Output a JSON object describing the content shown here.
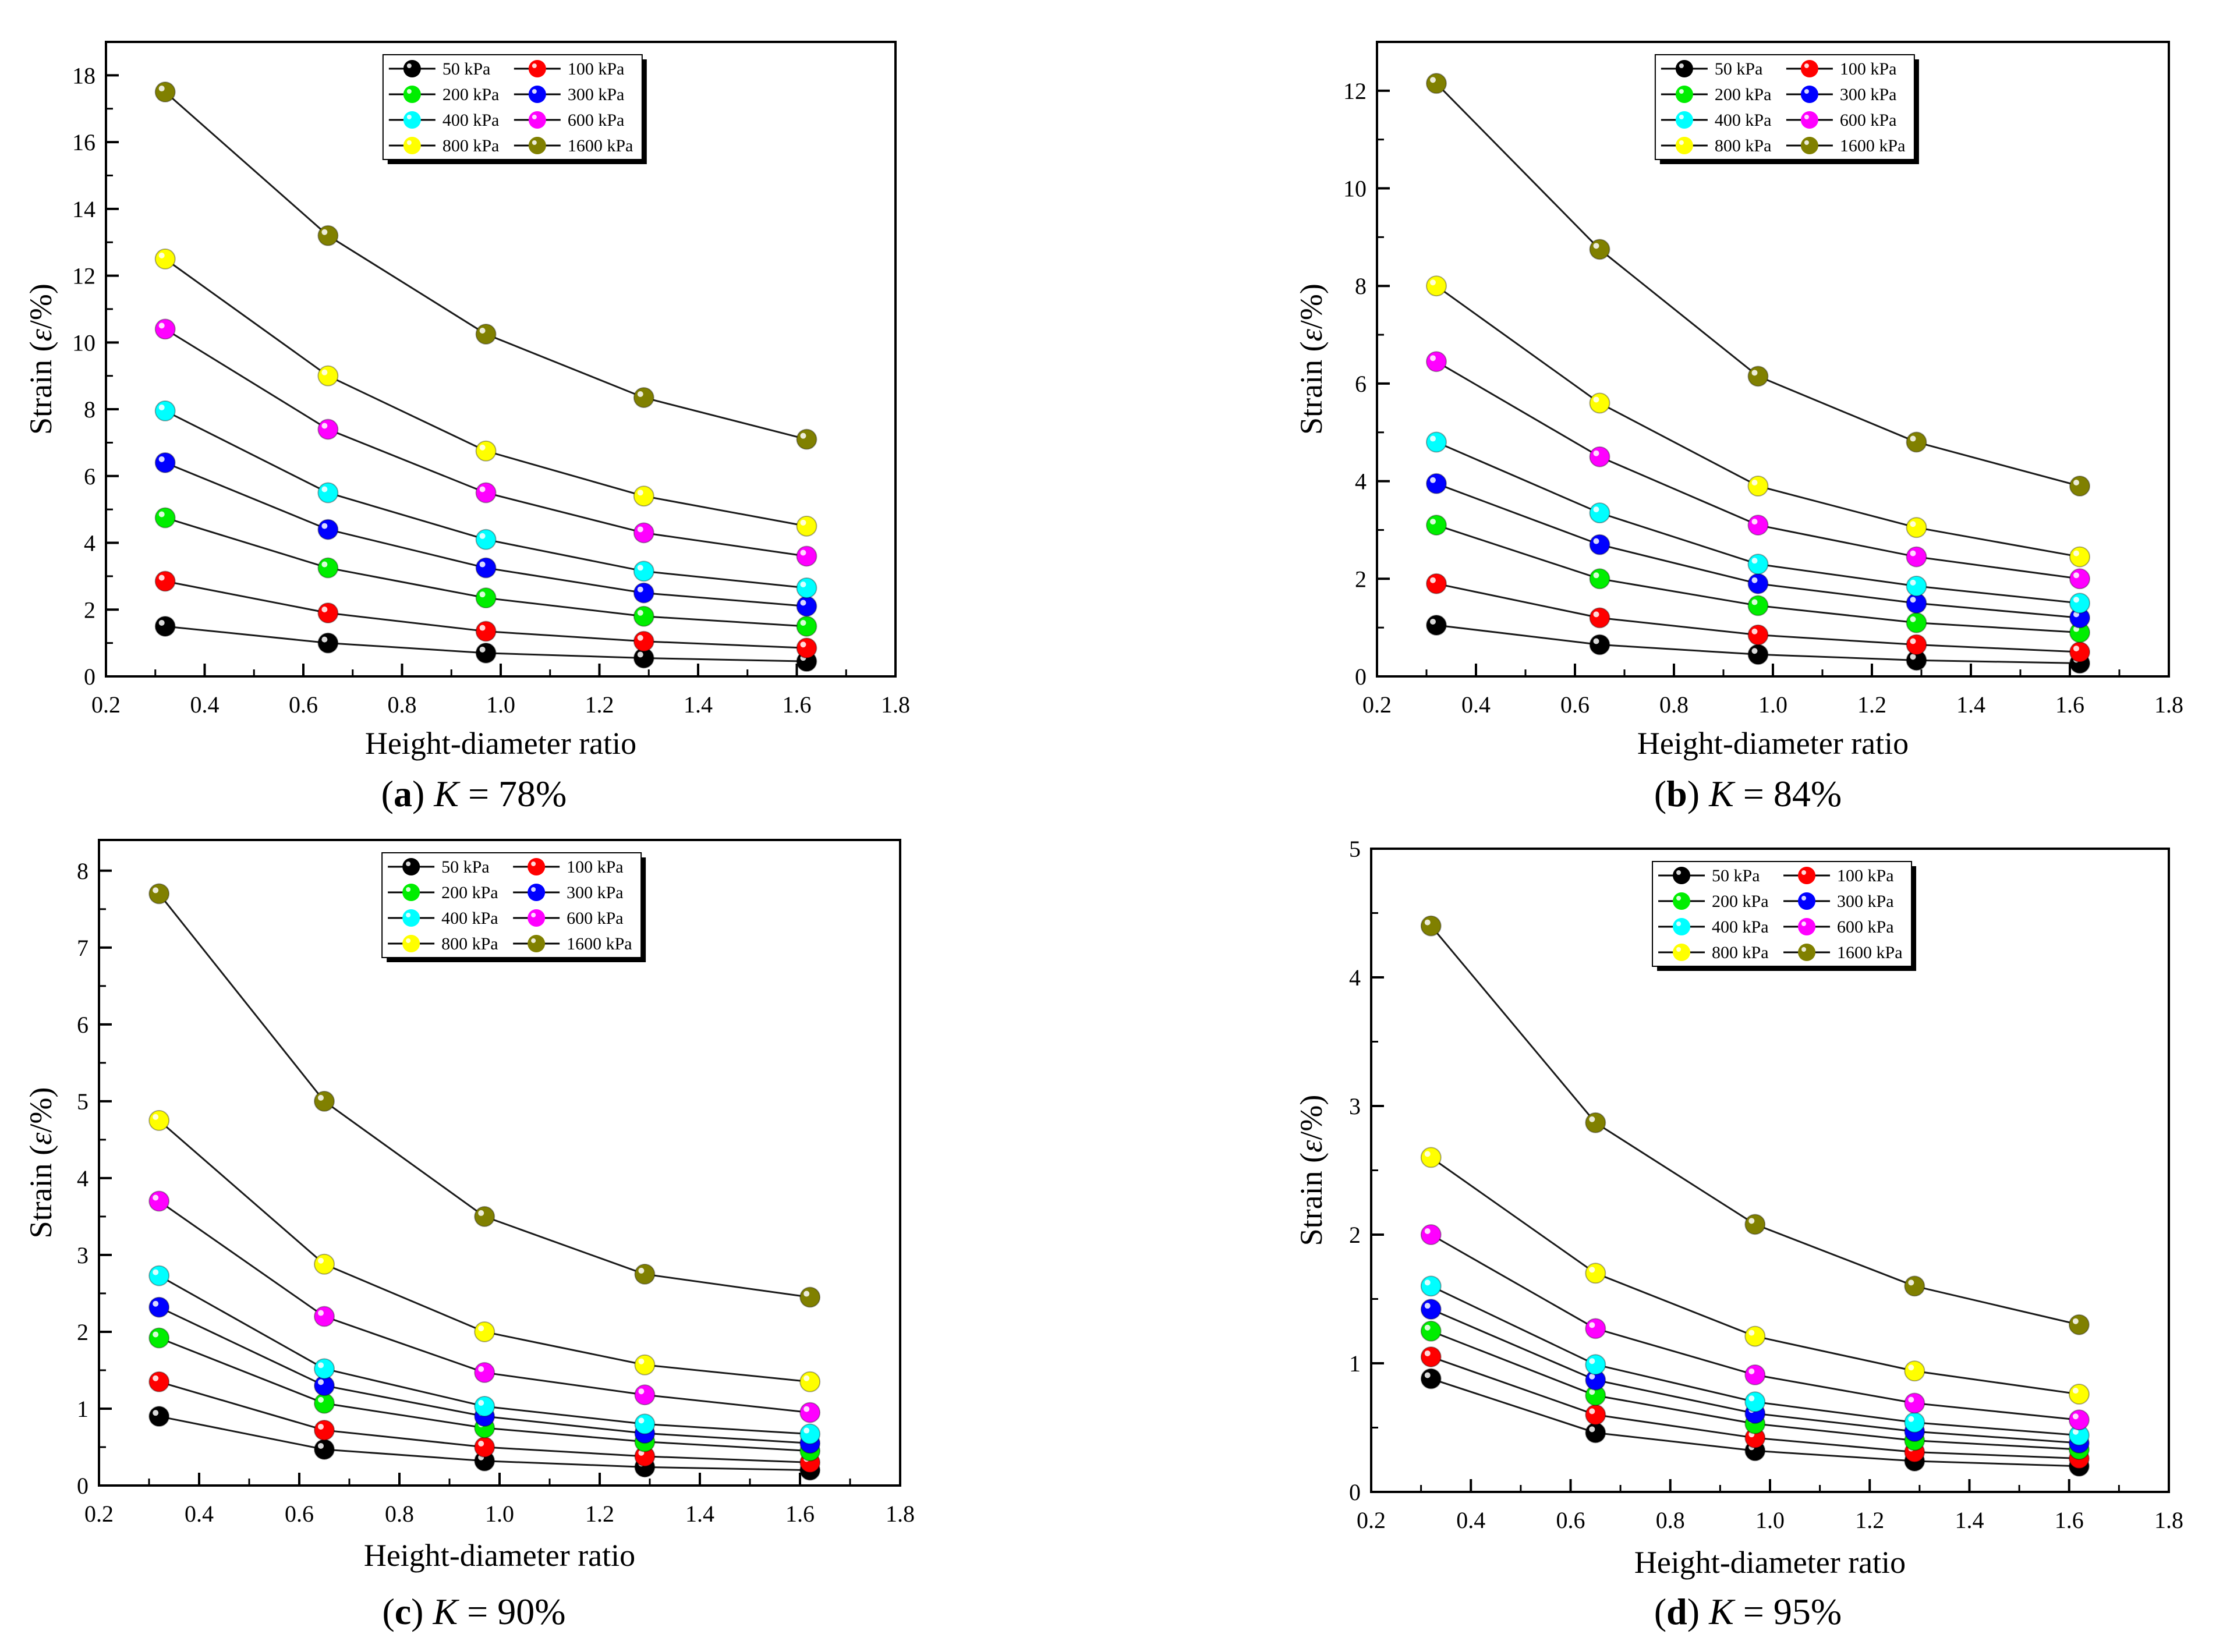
{
  "chart_data": [
    {
      "type": "line",
      "caption_letter": "a",
      "caption_var": "K",
      "caption_value": " = 78%",
      "xlabel": "Height-diameter ratio",
      "ylabel_prefix": "Strain (",
      "ylabel_symbol": "ε",
      "ylabel_suffix": "/%)",
      "xlim": [
        0.2,
        1.8
      ],
      "ylim": [
        0,
        19
      ],
      "xticks": [
        0.2,
        0.4,
        0.6,
        0.8,
        1.0,
        1.2,
        1.4,
        1.6,
        1.8
      ],
      "yticks": [
        0,
        2,
        4,
        6,
        8,
        10,
        12,
        14,
        16,
        18
      ],
      "x": [
        0.32,
        0.65,
        0.97,
        1.29,
        1.62
      ],
      "legend_position": "top-center",
      "series": [
        {
          "name": "50 kPa",
          "color": "#000000",
          "values": [
            1.5,
            1.0,
            0.7,
            0.55,
            0.45
          ]
        },
        {
          "name": "100 kPa",
          "color": "#ff0000",
          "values": [
            2.85,
            1.9,
            1.35,
            1.05,
            0.85
          ]
        },
        {
          "name": "200 kPa",
          "color": "#00ee00",
          "values": [
            4.75,
            3.25,
            2.35,
            1.8,
            1.5
          ]
        },
        {
          "name": "300 kPa",
          "color": "#0000ff",
          "values": [
            6.4,
            4.4,
            3.25,
            2.5,
            2.1
          ]
        },
        {
          "name": "400 kPa",
          "color": "#00ffff",
          "values": [
            7.95,
            5.5,
            4.1,
            3.15,
            2.65
          ]
        },
        {
          "name": "600 kPa",
          "color": "#ff00ff",
          "values": [
            10.4,
            7.4,
            5.5,
            4.3,
            3.6
          ]
        },
        {
          "name": "800 kPa",
          "color": "#ffff00",
          "values": [
            12.5,
            9.0,
            6.75,
            5.4,
            4.5
          ]
        },
        {
          "name": "1600 kPa",
          "color": "#808000",
          "values": [
            17.5,
            13.2,
            10.25,
            8.35,
            7.1
          ]
        }
      ]
    },
    {
      "type": "line",
      "caption_letter": "b",
      "caption_var": "K",
      "caption_value": " = 84%",
      "xlabel": "Height-diameter ratio",
      "ylabel_prefix": "Strain (",
      "ylabel_symbol": "ε",
      "ylabel_suffix": "/%)",
      "xlim": [
        0.2,
        1.8
      ],
      "ylim": [
        0,
        13
      ],
      "xticks": [
        0.2,
        0.4,
        0.6,
        0.8,
        1.0,
        1.2,
        1.4,
        1.6,
        1.8
      ],
      "yticks": [
        0,
        2,
        4,
        6,
        8,
        10,
        12
      ],
      "x": [
        0.32,
        0.65,
        0.97,
        1.29,
        1.62
      ],
      "legend_position": "top-center",
      "series": [
        {
          "name": "50 kPa",
          "color": "#000000",
          "values": [
            1.05,
            0.65,
            0.45,
            0.33,
            0.27
          ]
        },
        {
          "name": "100 kPa",
          "color": "#ff0000",
          "values": [
            1.9,
            1.2,
            0.85,
            0.65,
            0.5
          ]
        },
        {
          "name": "200 kPa",
          "color": "#00ee00",
          "values": [
            3.1,
            2.0,
            1.45,
            1.1,
            0.9
          ]
        },
        {
          "name": "300 kPa",
          "color": "#0000ff",
          "values": [
            3.95,
            2.7,
            1.9,
            1.5,
            1.2
          ]
        },
        {
          "name": "400 kPa",
          "color": "#00ffff",
          "values": [
            4.8,
            3.35,
            2.3,
            1.85,
            1.5
          ]
        },
        {
          "name": "600 kPa",
          "color": "#ff00ff",
          "values": [
            6.45,
            4.5,
            3.1,
            2.45,
            2.0
          ]
        },
        {
          "name": "800 kPa",
          "color": "#ffff00",
          "values": [
            8.0,
            5.6,
            3.9,
            3.05,
            2.45
          ]
        },
        {
          "name": "1600 kPa",
          "color": "#808000",
          "values": [
            12.15,
            8.75,
            6.15,
            4.8,
            3.9
          ]
        }
      ]
    },
    {
      "type": "line",
      "caption_letter": "c",
      "caption_var": "K",
      "caption_value": " = 90%",
      "xlabel": "Height-diameter ratio",
      "ylabel_prefix": "Strain (",
      "ylabel_symbol": "ε",
      "ylabel_suffix": "/%)",
      "xlim": [
        0.2,
        1.8
      ],
      "ylim": [
        0,
        8.4
      ],
      "xticks": [
        0.2,
        0.4,
        0.6,
        0.8,
        1.0,
        1.2,
        1.4,
        1.6,
        1.8
      ],
      "yticks": [
        0,
        1,
        2,
        3,
        4,
        5,
        6,
        7,
        8
      ],
      "x": [
        0.32,
        0.65,
        0.97,
        1.29,
        1.62
      ],
      "legend_position": "top-center",
      "series": [
        {
          "name": "50 kPa",
          "color": "#000000",
          "values": [
            0.9,
            0.47,
            0.32,
            0.24,
            0.2
          ]
        },
        {
          "name": "100 kPa",
          "color": "#ff0000",
          "values": [
            1.35,
            0.72,
            0.5,
            0.38,
            0.3
          ]
        },
        {
          "name": "200 kPa",
          "color": "#00ee00",
          "values": [
            1.92,
            1.07,
            0.75,
            0.57,
            0.45
          ]
        },
        {
          "name": "300 kPa",
          "color": "#0000ff",
          "values": [
            2.32,
            1.3,
            0.9,
            0.68,
            0.55
          ]
        },
        {
          "name": "400 kPa",
          "color": "#00ffff",
          "values": [
            2.73,
            1.52,
            1.03,
            0.8,
            0.67
          ]
        },
        {
          "name": "600 kPa",
          "color": "#ff00ff",
          "values": [
            3.7,
            2.2,
            1.47,
            1.18,
            0.95
          ]
        },
        {
          "name": "800 kPa",
          "color": "#ffff00",
          "values": [
            4.75,
            2.88,
            2.0,
            1.57,
            1.35
          ]
        },
        {
          "name": "1600 kPa",
          "color": "#808000",
          "values": [
            7.7,
            5.0,
            3.5,
            2.75,
            2.45
          ]
        }
      ]
    },
    {
      "type": "line",
      "caption_letter": "d",
      "caption_var": "K",
      "caption_value": " = 95%",
      "xlabel": "Height-diameter ratio",
      "ylabel_prefix": "Strain (",
      "ylabel_symbol": "ε",
      "ylabel_suffix": "/%)",
      "xlim": [
        0.2,
        1.8
      ],
      "ylim": [
        0,
        5
      ],
      "xticks": [
        0.2,
        0.4,
        0.6,
        0.8,
        1.0,
        1.2,
        1.4,
        1.6,
        1.8
      ],
      "yticks": [
        0,
        1,
        2,
        3,
        4,
        5
      ],
      "x": [
        0.32,
        0.65,
        0.97,
        1.29,
        1.62
      ],
      "legend_position": "top-center",
      "series": [
        {
          "name": "50 kPa",
          "color": "#000000",
          "values": [
            0.88,
            0.46,
            0.32,
            0.24,
            0.2
          ]
        },
        {
          "name": "100 kPa",
          "color": "#ff0000",
          "values": [
            1.05,
            0.6,
            0.42,
            0.31,
            0.26
          ]
        },
        {
          "name": "200 kPa",
          "color": "#00ee00",
          "values": [
            1.25,
            0.75,
            0.53,
            0.4,
            0.33
          ]
        },
        {
          "name": "300 kPa",
          "color": "#0000ff",
          "values": [
            1.42,
            0.87,
            0.61,
            0.47,
            0.38
          ]
        },
        {
          "name": "400 kPa",
          "color": "#00ffff",
          "values": [
            1.6,
            0.99,
            0.7,
            0.54,
            0.44
          ]
        },
        {
          "name": "600 kPa",
          "color": "#ff00ff",
          "values": [
            2.0,
            1.27,
            0.91,
            0.69,
            0.56
          ]
        },
        {
          "name": "800 kPa",
          "color": "#ffff00",
          "values": [
            2.6,
            1.7,
            1.21,
            0.94,
            0.76
          ]
        },
        {
          "name": "1600 kPa",
          "color": "#808000",
          "values": [
            4.4,
            2.87,
            2.08,
            1.6,
            1.3
          ]
        }
      ]
    }
  ]
}
